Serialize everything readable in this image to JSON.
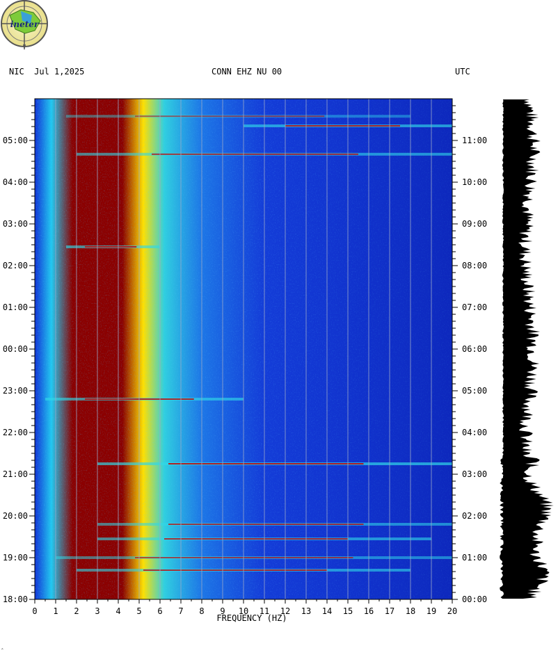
{
  "logo": {
    "text": "ineter",
    "icon": "ineter-compass-logo"
  },
  "header": {
    "left": "NIC  Jul 1,2025",
    "center": "CONN EHZ NU 00",
    "right": "UTC"
  },
  "footer_mark": "‸",
  "colors": {
    "background_blue": "#1133d6",
    "deep_blue": "#0a1fa8",
    "dark_red": "#8b0000",
    "seismogram": "#000000"
  },
  "chart_data": {
    "type": "heatmap",
    "title": "",
    "xlabel": "FREQUENCY (HZ)",
    "xlim": [
      0,
      20
    ],
    "x_ticks": [
      "0",
      "1",
      "2",
      "3",
      "4",
      "5",
      "6",
      "7",
      "8",
      "9",
      "10",
      "11",
      "12",
      "13",
      "14",
      "15",
      "16",
      "17",
      "18",
      "19",
      "20"
    ],
    "y_left_ticks": [
      "18:00",
      "19:00",
      "20:00",
      "21:00",
      "22:00",
      "23:00",
      "00:00",
      "01:00",
      "02:00",
      "03:00",
      "04:00",
      "05:00"
    ],
    "y_right_ticks": [
      "00:00",
      "01:00",
      "02:00",
      "03:00",
      "04:00",
      "05:00",
      "06:00",
      "07:00",
      "08:00",
      "09:00",
      "10:00",
      "11:00"
    ],
    "y_left_label": "NIC",
    "y_right_label": "UTC",
    "time_span_hours": 12,
    "grid": true,
    "high_energy_band_hz": [
      0.5,
      1.5
    ],
    "horizontal_events": [
      {
        "hour_from_top": 0.42,
        "f_start": 1.5,
        "f_end": 18,
        "intensity": 0.55
      },
      {
        "hour_from_top": 0.65,
        "f_start": 10,
        "f_end": 20,
        "intensity": 0.8
      },
      {
        "hour_from_top": 1.33,
        "f_start": 2,
        "f_end": 20,
        "intensity": 0.75
      },
      {
        "hour_from_top": 3.55,
        "f_start": 1.5,
        "f_end": 6,
        "intensity": 0.8
      },
      {
        "hour_from_top": 7.2,
        "f_start": 0.5,
        "f_end": 10,
        "intensity": 0.8
      },
      {
        "hour_from_top": 8.75,
        "f_start": 3,
        "f_end": 20,
        "intensity": 0.85
      },
      {
        "hour_from_top": 10.2,
        "f_start": 3,
        "f_end": 20,
        "intensity": 0.7
      },
      {
        "hour_from_top": 10.55,
        "f_start": 3,
        "f_end": 19,
        "intensity": 0.75
      },
      {
        "hour_from_top": 11.0,
        "f_start": 1,
        "f_end": 20,
        "intensity": 0.65
      },
      {
        "hour_from_top": 11.3,
        "f_start": 2,
        "f_end": 18,
        "intensity": 0.75
      }
    ]
  }
}
